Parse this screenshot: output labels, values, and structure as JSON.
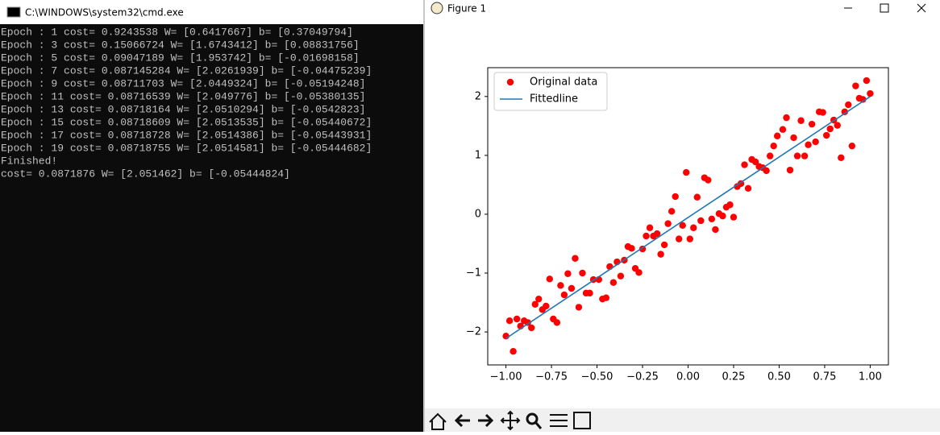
{
  "console_window": {
    "title": "C:\\WINDOWS\\system32\\cmd.exe",
    "lines": [
      "Epoch : 1 cost= 0.9243538 W= [0.6417667] b= [0.37049794]",
      "Epoch : 3 cost= 0.15066724 W= [1.6743412] b= [0.08831756]",
      "Epoch : 5 cost= 0.09047189 W= [1.953742] b= [-0.01698158]",
      "Epoch : 7 cost= 0.087145284 W= [2.0261939] b= [-0.04475239]",
      "Epoch : 9 cost= 0.08711703 W= [2.0449324] b= [-0.05194248]",
      "Epoch : 11 cost= 0.08716539 W= [2.049776] b= [-0.05380135]",
      "Epoch : 13 cost= 0.08718164 W= [2.0510294] b= [-0.0542823]",
      "Epoch : 15 cost= 0.08718609 W= [2.0513535] b= [-0.05440672]",
      "Epoch : 17 cost= 0.08718728 W= [2.0514386] b= [-0.05443931]",
      "Epoch : 19 cost= 0.08718755 W= [2.0514581] b= [-0.05444682]",
      "Finished!",
      "cost= 0.0871876 W= [2.051462] b= [-0.05444824]"
    ]
  },
  "figure_window": {
    "title": "Figure 1"
  },
  "chart_data": {
    "type": "scatter",
    "xlim": [
      -1.1,
      1.1
    ],
    "ylim": [
      -2.56,
      2.49
    ],
    "xticks": [
      {
        "value": -1.0,
        "label": "−1.00"
      },
      {
        "value": -0.75,
        "label": "−0.75"
      },
      {
        "value": -0.5,
        "label": "−0.50"
      },
      {
        "value": -0.25,
        "label": "−0.25"
      },
      {
        "value": 0,
        "label": "0.00"
      },
      {
        "value": 0.25,
        "label": "0.25"
      },
      {
        "value": 0.5,
        "label": "0.50"
      },
      {
        "value": 0.75,
        "label": "0.75"
      },
      {
        "value": 1.0,
        "label": "1.00"
      }
    ],
    "yticks": [
      {
        "value": -2,
        "label": "−2"
      },
      {
        "value": -1,
        "label": "−1"
      },
      0,
      1,
      2
    ],
    "legend": "upper left",
    "series": [
      {
        "name": "Original data",
        "type": "scatter",
        "color": "#ff0000",
        "x": [
          -1.0,
          -0.98,
          -0.96,
          -0.94,
          -0.92,
          -0.9,
          -0.88,
          -0.86,
          -0.84,
          -0.82,
          -0.8,
          -0.78,
          -0.76,
          -0.74,
          -0.72,
          -0.7,
          -0.68,
          -0.66,
          -0.64,
          -0.62,
          -0.6,
          -0.58,
          -0.56,
          -0.54,
          -0.52,
          -0.49,
          -0.47,
          -0.45,
          -0.43,
          -0.41,
          -0.39,
          -0.37,
          -0.35,
          -0.33,
          -0.31,
          -0.29,
          -0.27,
          -0.25,
          -0.23,
          -0.21,
          -0.19,
          -0.17,
          -0.15,
          -0.13,
          -0.11,
          -0.09,
          -0.07,
          -0.05,
          -0.03,
          -0.01,
          0.01,
          0.03,
          0.05,
          0.07,
          0.09,
          0.11,
          0.13,
          0.15,
          0.17,
          0.19,
          0.21,
          0.23,
          0.25,
          0.27,
          0.29,
          0.31,
          0.33,
          0.35,
          0.37,
          0.39,
          0.41,
          0.43,
          0.45,
          0.47,
          0.49,
          0.52,
          0.54,
          0.56,
          0.58,
          0.6,
          0.62,
          0.64,
          0.66,
          0.68,
          0.7,
          0.72,
          0.74,
          0.76,
          0.78,
          0.8,
          0.82,
          0.84,
          0.86,
          0.88,
          0.9,
          0.92,
          0.94,
          0.96,
          0.98,
          1.0
        ],
        "values": [
          -2.07,
          -1.81,
          -2.33,
          -1.78,
          -1.9,
          -1.81,
          -1.84,
          -1.93,
          -1.53,
          -1.44,
          -1.62,
          -1.56,
          -1.1,
          -1.78,
          -1.84,
          -1.21,
          -1.37,
          -1.01,
          -1.26,
          -0.75,
          -1.58,
          -1.0,
          -1.34,
          -1.34,
          -1.11,
          -1.11,
          -1.44,
          -1.42,
          -0.89,
          -1.16,
          -0.81,
          -1.05,
          -0.78,
          -0.55,
          -0.58,
          -0.92,
          -0.99,
          -0.59,
          -0.37,
          -0.23,
          -0.37,
          -0.33,
          -0.68,
          -0.52,
          -0.16,
          0.05,
          0.3,
          -0.42,
          -0.19,
          0.71,
          -0.42,
          -0.23,
          0.29,
          -0.11,
          0.62,
          0.58,
          -0.08,
          -0.26,
          0.01,
          -0.03,
          0.12,
          0.16,
          -0.05,
          0.47,
          0.52,
          0.84,
          0.44,
          0.93,
          0.89,
          0.81,
          0.79,
          0.74,
          0.99,
          1.16,
          1.33,
          1.44,
          1.64,
          0.75,
          1.3,
          0.99,
          1.59,
          0.99,
          1.18,
          1.53,
          1.23,
          1.74,
          1.73,
          1.34,
          1.45,
          1.6,
          1.51,
          0.96,
          1.74,
          1.86,
          1.16,
          2.18,
          1.97,
          1.95,
          2.27,
          2.05
        ]
      },
      {
        "name": "Fittedline",
        "type": "line",
        "color": "#1f77b4",
        "x": [
          -1.0,
          1.0
        ],
        "values": [
          -2.11,
          2.0
        ]
      }
    ]
  }
}
